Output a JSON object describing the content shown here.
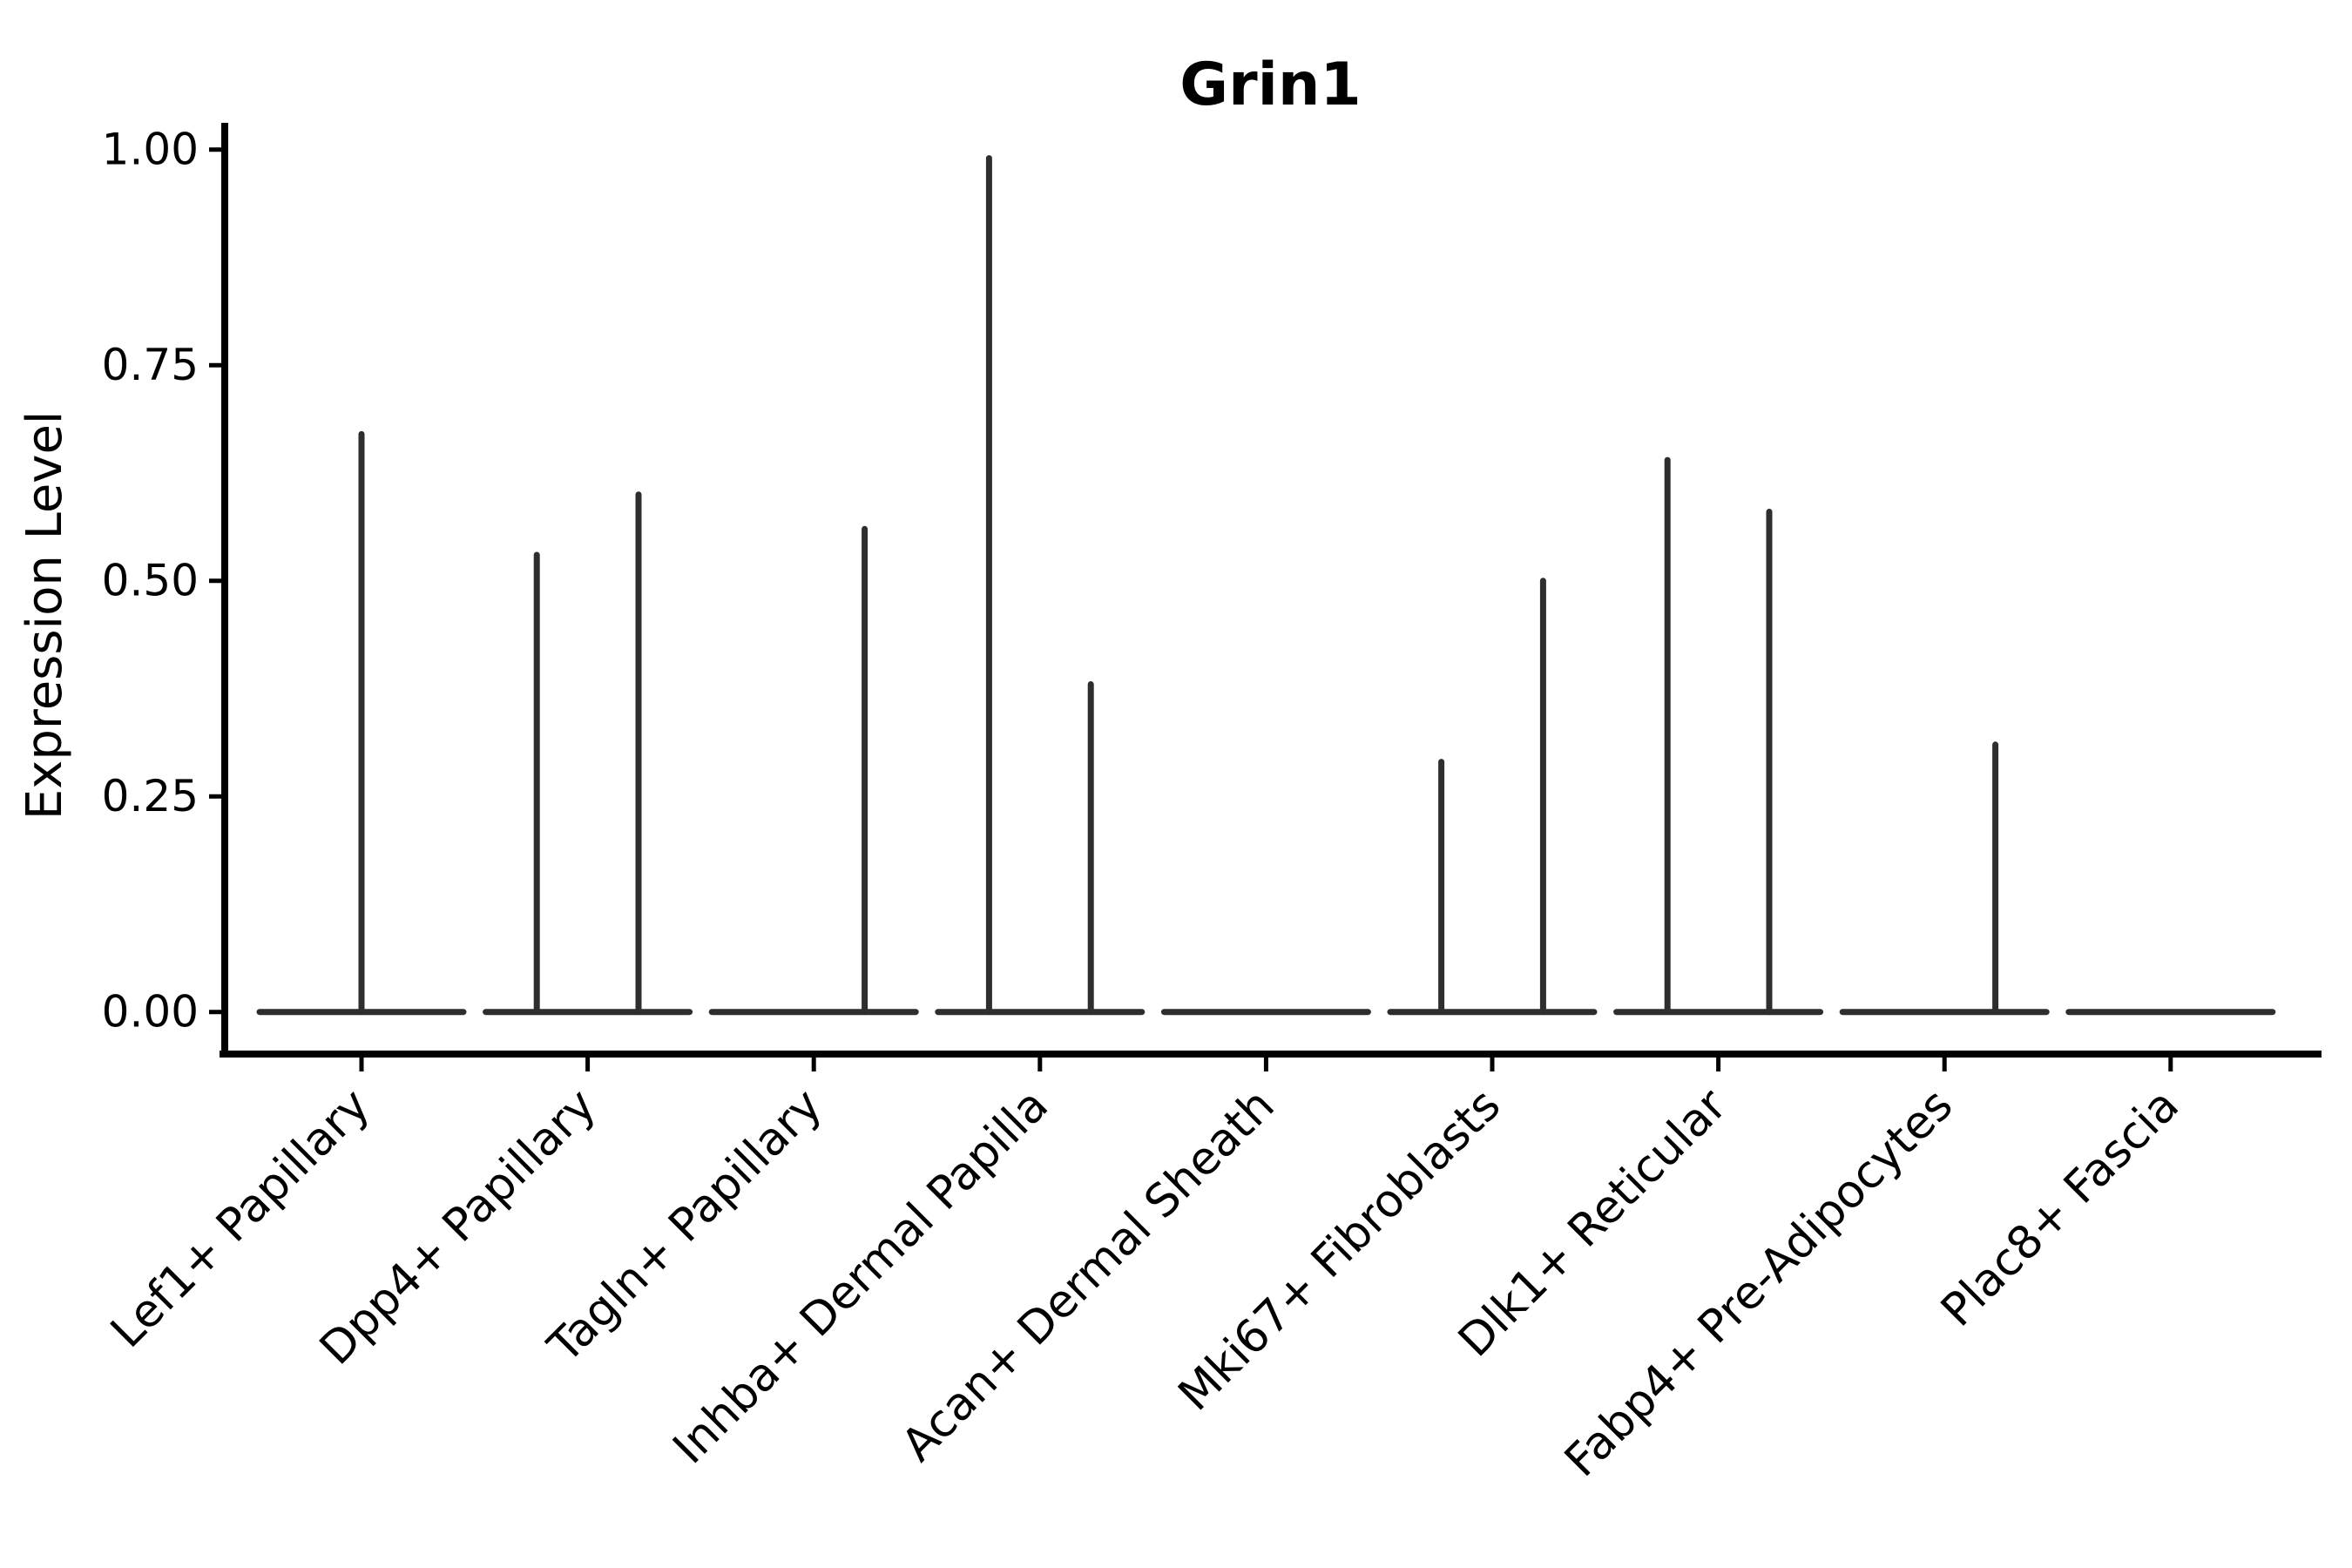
{
  "chart_data": {
    "type": "violin",
    "title": "Grin1",
    "ylabel": "Expression Level",
    "xlabel": "",
    "ylim": [
      0.0,
      1.03
    ],
    "yticks": [
      0.0,
      0.25,
      0.5,
      0.75,
      1.0
    ],
    "ytick_labels": [
      "0.00",
      "0.25",
      "0.50",
      "0.75",
      "1.00"
    ],
    "grid": "off",
    "legend": "none",
    "style_note": "Seurat-style violin plot; each violin collapses to a flat base at 0 with thin vertical spikes at group maxima; dodged split groups give left/right spikes",
    "violin_color": "#2e2e2e",
    "axis_color": "#000000",
    "categories": [
      "Lef1+ Papillary",
      "Dpp4+ Papillary",
      "Tagln+ Papillary",
      "Inhba+ Dermal Papilla",
      "Acan+ Dermal Sheath",
      "Mki67+ Fibroblasts",
      "Dlk1+ Reticular",
      "Fabp4+ Pre-Adipocytes",
      "Plac8+ Fascia"
    ],
    "violins": [
      {
        "category": "Lef1+ Papillary",
        "baseline": 0.0,
        "spikes": [
          {
            "pos": "center",
            "value": 0.67
          }
        ]
      },
      {
        "category": "Dpp4+ Papillary",
        "baseline": 0.0,
        "spikes": [
          {
            "pos": "left",
            "value": 0.53
          },
          {
            "pos": "right",
            "value": 0.6
          }
        ]
      },
      {
        "category": "Tagln+ Papillary",
        "baseline": 0.0,
        "spikes": [
          {
            "pos": "right",
            "value": 0.56
          }
        ]
      },
      {
        "category": "Inhba+ Dermal Papilla",
        "baseline": 0.0,
        "spikes": [
          {
            "pos": "left",
            "value": 0.99
          },
          {
            "pos": "right",
            "value": 0.38
          }
        ]
      },
      {
        "category": "Acan+ Dermal Sheath",
        "baseline": 0.0,
        "spikes": []
      },
      {
        "category": "Mki67+ Fibroblasts",
        "baseline": 0.0,
        "spikes": [
          {
            "pos": "left",
            "value": 0.29
          },
          {
            "pos": "right",
            "value": 0.5
          }
        ]
      },
      {
        "category": "Dlk1+ Reticular",
        "baseline": 0.0,
        "spikes": [
          {
            "pos": "left",
            "value": 0.64
          },
          {
            "pos": "right",
            "value": 0.58
          }
        ]
      },
      {
        "category": "Fabp4+ Pre-Adipocytes",
        "baseline": 0.0,
        "spikes": [
          {
            "pos": "right",
            "value": 0.31
          }
        ]
      },
      {
        "category": "Plac8+ Fascia",
        "baseline": 0.0,
        "spikes": []
      }
    ]
  }
}
